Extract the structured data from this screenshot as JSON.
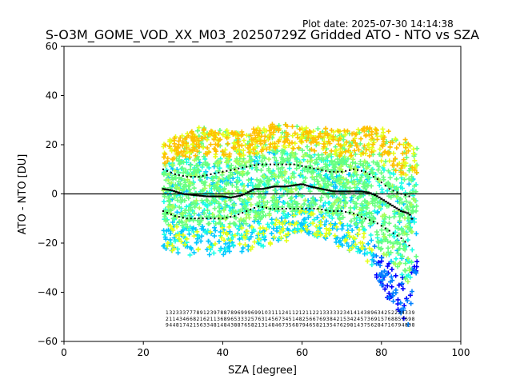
{
  "plot_date_label": "Plot date: 2025-07-30 14:14:38",
  "chart_data": {
    "type": "scatter",
    "title": "S-O3M_GOME_VOD_XX_M03_20250729Z Gridded ATO - NTO vs SZA",
    "xlabel": "SZA [degree]",
    "ylabel": "ATO - NTO [DU]",
    "xlim": [
      0,
      100
    ],
    "ylim": [
      -60,
      60
    ],
    "xticks": [
      "0",
      "20",
      "40",
      "60",
      "80",
      "100"
    ],
    "yticks": [
      "−60",
      "−40",
      "−20",
      "0",
      "20",
      "40",
      "60"
    ],
    "grid": false,
    "legend": "none",
    "marker": "+",
    "colormap": [
      "#0000ff",
      "#0080ff",
      "#00c8ff",
      "#19ffe6",
      "#66ff80",
      "#a6ff59",
      "#e6ff1a",
      "#ffc000",
      "#ff9000"
    ],
    "reference_line": {
      "y": 0,
      "color": "#000000"
    },
    "scatter_envelope": {
      "sza_range": [
        25,
        89
      ],
      "upper_edge": [
        [
          25,
          22
        ],
        [
          30,
          25
        ],
        [
          35,
          28
        ],
        [
          40,
          26
        ],
        [
          45,
          26
        ],
        [
          50,
          28
        ],
        [
          55,
          29
        ],
        [
          60,
          27
        ],
        [
          65,
          27
        ],
        [
          70,
          26
        ],
        [
          75,
          27
        ],
        [
          80,
          27
        ],
        [
          84,
          24
        ],
        [
          88,
          22
        ]
      ],
      "lower_edge": [
        [
          25,
          -22
        ],
        [
          30,
          -25
        ],
        [
          35,
          -25
        ],
        [
          40,
          -25
        ],
        [
          45,
          -24
        ],
        [
          50,
          -22
        ],
        [
          55,
          -20
        ],
        [
          60,
          -16
        ],
        [
          65,
          -18
        ],
        [
          70,
          -22
        ],
        [
          75,
          -25
        ],
        [
          78,
          -32
        ],
        [
          81,
          -42
        ],
        [
          84,
          -48
        ],
        [
          87,
          -54
        ],
        [
          88,
          -40
        ]
      ]
    },
    "mean_line": {
      "x": [
        25,
        27,
        30,
        33,
        36,
        40,
        42,
        45,
        48,
        50,
        53,
        56,
        58,
        60,
        62,
        65,
        68,
        70,
        73,
        75,
        77,
        79,
        81,
        83,
        85,
        87,
        88
      ],
      "y": [
        2,
        1.5,
        0,
        -0.5,
        -1,
        -1,
        -1.5,
        -0.5,
        2,
        2,
        3,
        3,
        3.5,
        4,
        3,
        2,
        1,
        1,
        1,
        1,
        0.5,
        -1,
        -3,
        -5,
        -7,
        -8,
        -11
      ]
    },
    "upper_std_line": {
      "x": [
        25,
        28,
        31,
        34,
        37,
        40,
        43,
        46,
        49,
        52,
        55,
        58,
        61,
        64,
        67,
        70,
        73,
        76,
        79,
        82,
        85,
        87
      ],
      "y": [
        10,
        8,
        7,
        7,
        8,
        9,
        10,
        11,
        12,
        12,
        12,
        12,
        11,
        10,
        9,
        9,
        10,
        9,
        6,
        2,
        0,
        -1
      ]
    },
    "lower_std_line": {
      "x": [
        25,
        28,
        31,
        34,
        37,
        40,
        43,
        46,
        49,
        52,
        55,
        58,
        61,
        64,
        67,
        70,
        73,
        76,
        79,
        82,
        85,
        87
      ],
      "y": [
        -7,
        -9,
        -10,
        -10,
        -10,
        -10,
        -9,
        -7,
        -5,
        -6,
        -6,
        -6,
        -6,
        -6,
        -7,
        -7,
        -8,
        -10,
        -12,
        -15,
        -18,
        -21
      ]
    },
    "count_labels": {
      "x_start": 26,
      "x_end": 88,
      "rows": [
        {
          "y": -49,
          "values": [
            "1",
            "3",
            "2",
            "3",
            "3",
            "3",
            "7",
            "7",
            "7",
            "8",
            "9",
            "1",
            "2",
            "3",
            "9",
            "7",
            "8",
            "8",
            "7",
            "8",
            "9",
            "6",
            "9",
            "9",
            "9",
            "6",
            "9",
            "9",
            "1",
            "0",
            "3",
            "1",
            "1",
            "1",
            "2",
            "4",
            "1",
            "1",
            "2",
            "1",
            "2",
            "1",
            "1",
            "2",
            "2",
            "1",
            "3",
            "3",
            "3",
            "3",
            "3",
            "2",
            "3",
            "4",
            "1",
            "4",
            "1",
            "4",
            "3",
            "8",
            "9",
            "6",
            "3",
            "4",
            "2",
            "5",
            "2",
            "2",
            "3",
            "4",
            "3",
            "3",
            "9"
          ]
        },
        {
          "y": -51.5,
          "values": [
            "2",
            "1",
            "1",
            "4",
            "3",
            "4",
            "6",
            "6",
            "8",
            "2",
            "1",
            "6",
            "2",
            "1",
            "1",
            "3",
            "6",
            "8",
            "9",
            "6",
            "5",
            "3",
            "3",
            "3",
            "2",
            "5",
            "7",
            "6",
            "3",
            "1",
            "4",
            "5",
            "6",
            "7",
            "3",
            "4",
            "5",
            "1",
            "4",
            "8",
            "2",
            "5",
            "6",
            "6",
            "7",
            "6",
            "9",
            "3",
            "8",
            "4",
            "2",
            "1",
            "5",
            "3",
            "4",
            "2",
            "4",
            "5",
            "7",
            "3",
            "6",
            "9",
            "1",
            "5",
            "7",
            "6",
            "8",
            "8",
            "5",
            "7",
            "6",
            "9",
            "8"
          ]
        },
        {
          "y": -54,
          "values": [
            "9",
            "4",
            "4",
            "8",
            "1",
            "7",
            "4",
            "2",
            "1",
            "5",
            "6",
            "3",
            "3",
            "4",
            "8",
            "1",
            "4",
            "8",
            "4",
            "3",
            "8",
            "8",
            "7",
            "6",
            "5",
            "8",
            "2",
            "1",
            "3",
            "1",
            "4",
            "8",
            "4",
            "6",
            "7",
            "3",
            "5",
            "6",
            "8",
            "7",
            "9",
            "4",
            "6",
            "5",
            "8",
            "2",
            "1",
            "3",
            "5",
            "4",
            "7",
            "6",
            "2",
            "9",
            "8",
            "1",
            "4",
            "3",
            "7",
            "5",
            "6",
            "2",
            "8",
            "4",
            "7",
            "1",
            "6",
            "7",
            "9",
            "4",
            "8",
            "3",
            "8"
          ]
        }
      ]
    }
  }
}
